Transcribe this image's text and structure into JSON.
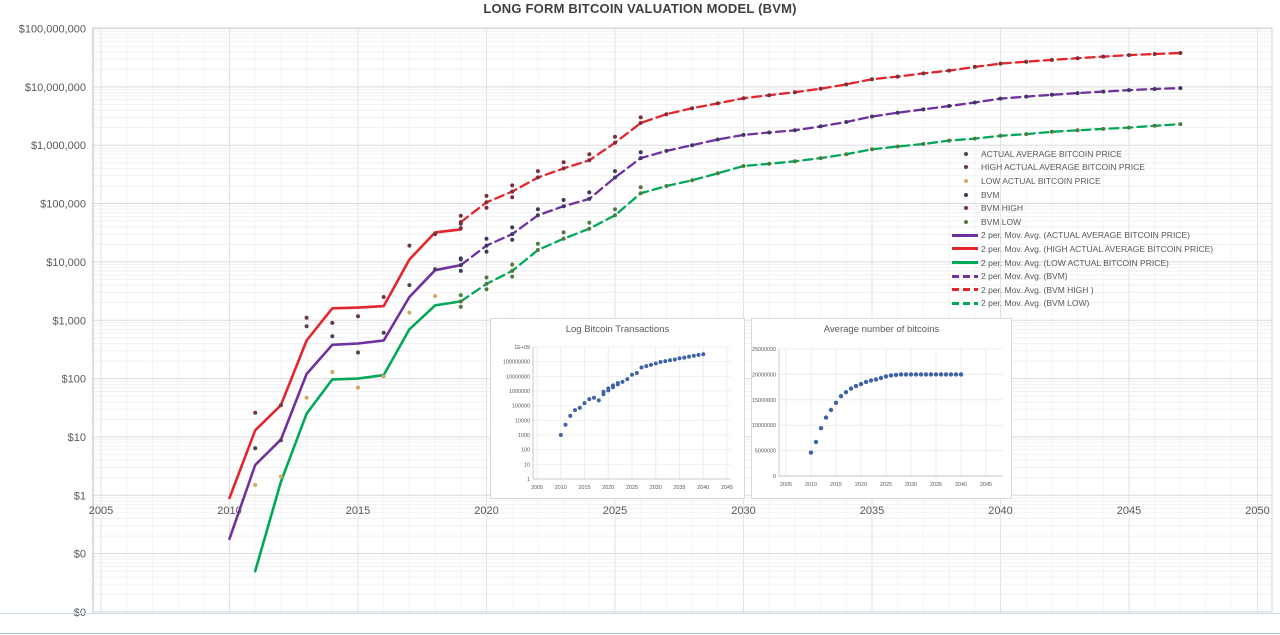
{
  "legend": {
    "items": [
      {
        "label": "ACTUAL AVERAGE BITCOIN PRICE",
        "marker": "dot",
        "color": "#4E4352"
      },
      {
        "label": "HIGH ACTUAL AVERAGE BITCOIN PRICE",
        "marker": "dot",
        "color": "#6E3448"
      },
      {
        "label": "LOW ACTUAL BITCOIN PRICE",
        "marker": "dot",
        "color": "#D6A461"
      },
      {
        "label": "BVM",
        "marker": "dot",
        "color": "#3B3960"
      },
      {
        "label": "BVM HIGH",
        "marker": "dot",
        "color": "#7D2E3C"
      },
      {
        "label": "BVM LOW",
        "marker": "dot",
        "color": "#527A3F"
      },
      {
        "label": "2 per. Mov. Avg. (ACTUAL AVERAGE BITCOIN PRICE)",
        "marker": "solid",
        "color": "#7030A0"
      },
      {
        "label": "2 per. Mov. Avg. (HIGH ACTUAL AVERAGE BITCOIN PRICE)",
        "marker": "solid",
        "color": "#E4262C"
      },
      {
        "label": "2 per. Mov. Avg. (LOW ACTUAL BITCOIN PRICE)",
        "marker": "solid",
        "color": "#00A859"
      },
      {
        "label": "2 per. Mov. Avg. (BVM)",
        "marker": "dash",
        "color": "#7030A0"
      },
      {
        "label": "2 per. Mov. Avg. (BVM HIGH )",
        "marker": "dash",
        "color": "#E4262C"
      },
      {
        "label": "2 per. Mov. Avg. (BVM LOW)",
        "marker": "dash",
        "color": "#00A859"
      }
    ]
  },
  "chart_data": [
    {
      "type": "line",
      "title": "LONG FORM BITCOIN VALUATION MODEL (BVM)",
      "xlabel": "",
      "ylabel": "",
      "y_axis": {
        "scale": "log",
        "tick_labels": [
          "$100,000,000",
          "$10,000,000",
          "$1,000,000",
          "$100,000",
          "$10,000",
          "$1,000",
          "$100",
          "$10",
          "$1",
          "$0",
          "$0"
        ],
        "tick_values": [
          100000000,
          10000000,
          1000000,
          100000,
          10000,
          1000,
          100,
          10,
          1,
          0.1,
          0.01
        ]
      },
      "x_axis": {
        "ticks": [
          2005,
          2010,
          2015,
          2020,
          2025,
          2030,
          2035,
          2040,
          2045,
          2050
        ],
        "range": [
          2005,
          2050
        ]
      },
      "ylim": [
        0.01,
        100000000
      ],
      "grid": true,
      "legend_position": "middle-right",
      "series": [
        {
          "name": "2 per. Mov. Avg. (ACTUAL AVERAGE BITCOIN PRICE)",
          "color": "#7030A0",
          "style": "solid",
          "x_start": 2010,
          "values": [
            0.18,
            3.3,
            9,
            120,
            380,
            400,
            450,
            2500,
            7200,
            8800
          ]
        },
        {
          "name": "2 per. Mov. Avg. (HIGH ACTUAL AVERAGE BITCOIN PRICE)",
          "color": "#E4262C",
          "style": "solid",
          "x_start": 2010,
          "values": [
            0.9,
            13,
            35,
            450,
            1600,
            1650,
            1750,
            11000,
            32000,
            36000
          ]
        },
        {
          "name": "2 per. Mov. Avg. (LOW ACTUAL BITCOIN PRICE)",
          "color": "#00A859",
          "style": "solid",
          "x_start": 2011,
          "values": [
            0.05,
            1.7,
            25,
            97,
            100,
            115,
            700,
            1800,
            2100
          ]
        },
        {
          "name": "2 per. Mov. Avg. (BVM)",
          "color": "#7030A0",
          "style": "dashed",
          "x_start": 2019,
          "values": [
            8800,
            19000,
            30000,
            63000,
            90000,
            120000,
            280000,
            600000,
            800000,
            1000000,
            1250000,
            1500000,
            1650000,
            1800000,
            2100000,
            2500000,
            3100000,
            3600000,
            4100000,
            4700000,
            5400000,
            6300000,
            6800000,
            7300000,
            7800000,
            8300000,
            8800000,
            9200000,
            9500000
          ]
        },
        {
          "name": "2 per. Mov. Avg. (BVM HIGH )",
          "color": "#E4262C",
          "style": "dashed",
          "x_start": 2019,
          "values": [
            48000,
            105000,
            160000,
            280000,
            400000,
            550000,
            1100000,
            2400000,
            3400000,
            4300000,
            5200000,
            6400000,
            7200000,
            8100000,
            9300000,
            11000000,
            13500000,
            15000000,
            17000000,
            19000000,
            22000000,
            25000000,
            27000000,
            29000000,
            31000000,
            33000000,
            35000000,
            36500000,
            38000000
          ]
        },
        {
          "name": "2 per. Mov. Avg. (BVM LOW)",
          "color": "#00A859",
          "style": "dashed",
          "x_start": 2019,
          "values": [
            2100,
            4200,
            7000,
            16000,
            25000,
            37000,
            63000,
            150000,
            200000,
            250000,
            330000,
            440000,
            480000,
            530000,
            600000,
            700000,
            850000,
            950000,
            1050000,
            1200000,
            1300000,
            1450000,
            1550000,
            1700000,
            1800000,
            1900000,
            2000000,
            2150000,
            2300000
          ]
        }
      ],
      "scatter": [
        {
          "name": "ACTUAL AVERAGE BITCOIN PRICE",
          "color": "#4E4352",
          "points": [
            [
              2011,
              6.4
            ],
            [
              2012,
              8.8
            ],
            [
              2013,
              790
            ],
            [
              2014,
              530
            ],
            [
              2015,
              280
            ],
            [
              2016,
              610
            ],
            [
              2017,
              4000
            ],
            [
              2018,
              7500
            ],
            [
              2019,
              11000
            ]
          ]
        },
        {
          "name": "HIGH ACTUAL AVERAGE BITCOIN PRICE",
          "color": "#6E3448",
          "points": [
            [
              2011,
              26
            ],
            [
              2012,
              35
            ],
            [
              2013,
              1100
            ],
            [
              2014,
              900
            ],
            [
              2015,
              1170
            ],
            [
              2016,
              2500
            ],
            [
              2017,
              19000
            ],
            [
              2018,
              30000
            ],
            [
              2019,
              45000
            ]
          ]
        },
        {
          "name": "LOW ACTUAL BITCOIN PRICE",
          "color": "#D6A461",
          "points": [
            [
              2011,
              1.5
            ],
            [
              2012,
              2.1
            ],
            [
              2013,
              47
            ],
            [
              2014,
              130
            ],
            [
              2015,
              70
            ],
            [
              2016,
              110
            ],
            [
              2017,
              1350
            ],
            [
              2018,
              2600
            ],
            [
              2019,
              2100
            ]
          ]
        },
        {
          "name": "BVM",
          "color": "#3B3960",
          "series_index": 3,
          "extra_points": [
            [
              2019,
              11500
            ],
            [
              2019,
              7000
            ],
            [
              2020,
              25000
            ],
            [
              2020,
              15000
            ],
            [
              2021,
              39000
            ],
            [
              2021,
              24000
            ],
            [
              2022,
              80000
            ],
            [
              2023,
              115000
            ],
            [
              2024,
              155000
            ],
            [
              2025,
              360000
            ],
            [
              2026,
              760000
            ]
          ]
        },
        {
          "name": "BVM HIGH",
          "color": "#7D2E3C",
          "series_index": 4,
          "extra_points": [
            [
              2019,
              62000
            ],
            [
              2019,
              38000
            ],
            [
              2020,
              135000
            ],
            [
              2020,
              85000
            ],
            [
              2021,
              205000
            ],
            [
              2021,
              128000
            ],
            [
              2022,
              360000
            ],
            [
              2023,
              510000
            ],
            [
              2024,
              700000
            ],
            [
              2025,
              1400000
            ],
            [
              2026,
              3000000
            ]
          ]
        },
        {
          "name": "BVM LOW",
          "color": "#527A3F",
          "series_index": 5,
          "extra_points": [
            [
              2019,
              2700
            ],
            [
              2019,
              1700
            ],
            [
              2020,
              5400
            ],
            [
              2020,
              3400
            ],
            [
              2021,
              9000
            ],
            [
              2021,
              5600
            ],
            [
              2022,
              20500
            ],
            [
              2023,
              32000
            ],
            [
              2024,
              47000
            ],
            [
              2025,
              80000
            ],
            [
              2026,
              190000
            ]
          ]
        }
      ]
    },
    {
      "type": "scatter",
      "title": "Log Bitcoin Transactions",
      "dot_color": "#3F62A8",
      "y_axis": {
        "scale": "log",
        "tick_labels": [
          "1E+09",
          "100000000",
          "10000000",
          "1000000",
          "100000",
          "10000",
          "1000",
          "100",
          "10",
          "1"
        ],
        "tick_values": [
          1000000000,
          100000000,
          10000000,
          1000000,
          100000,
          10000,
          1000,
          100,
          10,
          1
        ]
      },
      "x_axis": {
        "ticks": [
          2005,
          2010,
          2015,
          2020,
          2025,
          2030,
          2035,
          2040,
          2045
        ],
        "range": [
          2005,
          2045
        ]
      },
      "points": [
        [
          2010,
          1000
        ],
        [
          2011,
          5000
        ],
        [
          2012,
          20000
        ],
        [
          2013,
          50000
        ],
        [
          2014,
          70000
        ],
        [
          2015,
          150000
        ],
        [
          2016,
          280000
        ],
        [
          2017,
          350000
        ],
        [
          2018,
          230000
        ],
        [
          2019,
          600000
        ],
        [
          2019,
          900000
        ],
        [
          2020,
          1100000
        ],
        [
          2020,
          1500000
        ],
        [
          2021,
          1800000
        ],
        [
          2021,
          2400000
        ],
        [
          2022,
          2800000
        ],
        [
          2022,
          3500000
        ],
        [
          2023,
          4200000
        ],
        [
          2024,
          6500000
        ],
        [
          2025,
          13000000
        ],
        [
          2026,
          17000000
        ],
        [
          2027,
          40000000
        ],
        [
          2028,
          50000000
        ],
        [
          2029,
          60000000
        ],
        [
          2030,
          75000000
        ],
        [
          2031,
          95000000
        ],
        [
          2032,
          110000000
        ],
        [
          2033,
          125000000
        ],
        [
          2034,
          140000000
        ],
        [
          2035,
          170000000
        ],
        [
          2036,
          190000000
        ],
        [
          2037,
          220000000
        ],
        [
          2038,
          250000000
        ],
        [
          2039,
          290000000
        ],
        [
          2040,
          320000000
        ]
      ]
    },
    {
      "type": "scatter",
      "title": "Average number of bitcoins",
      "dot_color": "#3F62A8",
      "y_axis": {
        "scale": "linear",
        "tick_labels": [
          "25000000",
          "20000000",
          "15000000",
          "10000000",
          "5000000",
          "0"
        ],
        "tick_values": [
          25000000,
          20000000,
          15000000,
          10000000,
          5000000,
          0
        ]
      },
      "x_axis": {
        "ticks": [
          2005,
          2010,
          2015,
          2020,
          2025,
          2030,
          2035,
          2040,
          2045
        ],
        "range": [
          2005,
          2045
        ]
      },
      "x_start": 2010,
      "values": [
        4600000,
        6700000,
        9400000,
        11500000,
        13000000,
        14400000,
        15700000,
        16500000,
        17200000,
        17700000,
        18100000,
        18500000,
        18800000,
        19000000,
        19300000,
        19600000,
        19800000,
        19900000,
        20000000,
        20000000,
        20000000,
        20000000,
        20000000,
        20000000,
        20000000,
        20000000,
        20000000,
        20000000,
        20000000,
        20000000,
        20000000
      ]
    }
  ]
}
